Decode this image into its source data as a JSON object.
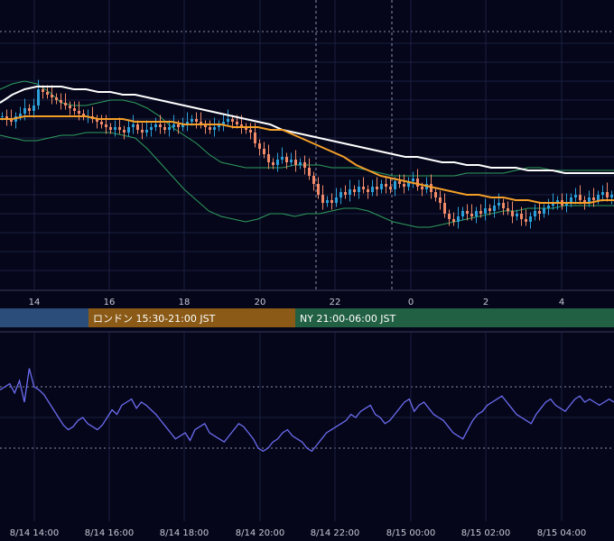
{
  "colors": {
    "background": "#05061a",
    "grid": "#1c2040",
    "bull": "#2a9fd8",
    "bear": "#f08a68",
    "bollinger": "#2f9e5e",
    "ma_fast": "#f4a028",
    "ma_slow": "#ffffff",
    "oscillator": "#6b6cf0",
    "session_tokyo": "#2b4d7a",
    "session_london": "#8a5a16",
    "session_ny": "#226044"
  },
  "sessions": [
    {
      "label": ""
    },
    {
      "label": "ロンドン 15:30-21:00 JST"
    },
    {
      "label": "NY 21:00-06:00 JST"
    }
  ],
  "chart_data": [
    {
      "type": "line",
      "panel": "price",
      "x_tick_labels": [
        "14",
        "16",
        "18",
        "20",
        "22",
        "0",
        "2",
        "4"
      ],
      "ylim": [
        0,
        100
      ],
      "grid": true,
      "note_series": "candlestick price with Bollinger bands and two moving averages",
      "candles_close": [
        62,
        61,
        60,
        62,
        63,
        65,
        64,
        66,
        72,
        71,
        70,
        69,
        68,
        67,
        66,
        65,
        64,
        63,
        62,
        62,
        61,
        60,
        59,
        58,
        57,
        58,
        57,
        56,
        58,
        59,
        57,
        56,
        57,
        58,
        59,
        58,
        57,
        58,
        59,
        58,
        59,
        60,
        61,
        60,
        59,
        58,
        57,
        58,
        59,
        60,
        61,
        60,
        59,
        58,
        57,
        56,
        52,
        50,
        48,
        45,
        44,
        46,
        47,
        45,
        46,
        44,
        45,
        43,
        40,
        37,
        33,
        30,
        31,
        30,
        32,
        34,
        33,
        35,
        34,
        36,
        35,
        34,
        36,
        35,
        37,
        36,
        35,
        38,
        37,
        36,
        38,
        39,
        36,
        35,
        37,
        34,
        32,
        30,
        26,
        24,
        23,
        25,
        27,
        26,
        25,
        27,
        26,
        28,
        27,
        29,
        30,
        28,
        27,
        25,
        26,
        24,
        23,
        25,
        27,
        26,
        28,
        29,
        30,
        31,
        29,
        30,
        32,
        33,
        31,
        30,
        32,
        31,
        33,
        34,
        32,
        33
      ],
      "ma_fast": [
        61,
        61,
        62,
        62,
        62,
        62,
        62,
        62,
        61,
        61,
        61,
        60,
        60,
        60,
        60,
        59,
        59,
        59,
        59,
        58,
        58,
        58,
        57,
        57,
        55,
        53,
        51,
        49,
        47,
        44,
        42,
        40,
        39,
        38,
        37,
        36,
        35,
        34,
        33,
        33,
        32,
        32,
        31,
        31,
        30,
        30,
        30,
        30,
        30,
        31,
        31
      ],
      "ma_slow": [
        67,
        70,
        72,
        73,
        73,
        73,
        72,
        72,
        71,
        71,
        70,
        70,
        69,
        68,
        67,
        66,
        65,
        64,
        63,
        62,
        61,
        60,
        59,
        57,
        56,
        55,
        54,
        53,
        52,
        51,
        50,
        49,
        48,
        47,
        47,
        46,
        45,
        45,
        44,
        44,
        43,
        43,
        43,
        42,
        42,
        42,
        41,
        41,
        41,
        41,
        41
      ],
      "bb_upper": [
        72,
        74,
        75,
        74,
        71,
        67,
        66,
        66,
        67,
        68,
        68,
        67,
        65,
        62,
        58,
        55,
        52,
        48,
        45,
        44,
        43,
        43,
        43,
        43,
        44,
        44,
        44,
        43,
        43,
        43,
        42,
        41,
        40,
        40,
        40,
        40,
        40,
        40,
        41,
        41,
        41,
        41,
        42,
        43,
        43,
        42,
        42,
        42,
        42,
        42,
        42
      ],
      "bb_lower": [
        55,
        54,
        53,
        53,
        54,
        55,
        55,
        56,
        56,
        56,
        55,
        54,
        50,
        45,
        40,
        35,
        31,
        27,
        25,
        24,
        23,
        24,
        26,
        26,
        25,
        26,
        26,
        27,
        28,
        28,
        27,
        25,
        23,
        22,
        21,
        21,
        22,
        23,
        24,
        25,
        26,
        27,
        27,
        28,
        28,
        28,
        29,
        29,
        29,
        29,
        29
      ]
    },
    {
      "type": "line",
      "panel": "oscillator",
      "x_tick_labels": [
        "8/14 14:00",
        "8/14 16:00",
        "8/14 18:00",
        "8/14 20:00",
        "8/14 22:00",
        "8/15 00:00",
        "8/15 02:00",
        "8/15 04:00"
      ],
      "ylim": [
        0,
        100
      ],
      "grid": true,
      "values": [
        68,
        70,
        72,
        66,
        74,
        60,
        82,
        70,
        68,
        65,
        60,
        55,
        50,
        45,
        42,
        44,
        48,
        50,
        46,
        44,
        42,
        45,
        50,
        55,
        52,
        58,
        60,
        62,
        56,
        60,
        58,
        55,
        52,
        48,
        44,
        40,
        36,
        38,
        40,
        35,
        42,
        44,
        46,
        40,
        38,
        36,
        34,
        38,
        42,
        46,
        44,
        40,
        36,
        30,
        28,
        30,
        34,
        36,
        40,
        42,
        38,
        36,
        34,
        30,
        28,
        32,
        36,
        40,
        42,
        44,
        46,
        48,
        52,
        50,
        54,
        56,
        58,
        52,
        50,
        46,
        48,
        52,
        56,
        60,
        62,
        54,
        58,
        60,
        56,
        52,
        50,
        48,
        44,
        40,
        38,
        36,
        42,
        48,
        52,
        54,
        58,
        60,
        62,
        64,
        60,
        56,
        52,
        50,
        48,
        46,
        52,
        56,
        60,
        62,
        58,
        56,
        54,
        58,
        62,
        64,
        60,
        62,
        60,
        58,
        60,
        62,
        60
      ],
      "level_lines": [
        30,
        70
      ]
    }
  ]
}
